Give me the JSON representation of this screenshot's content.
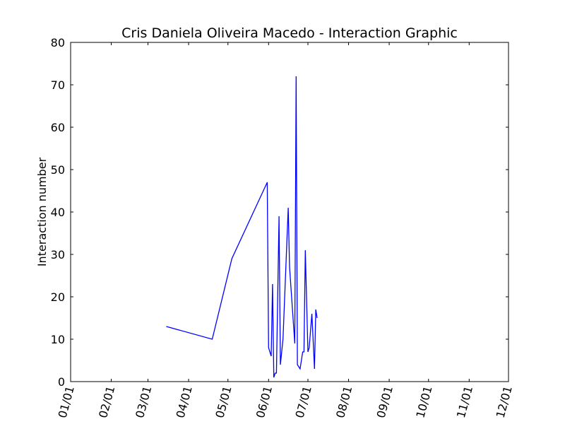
{
  "chart_data": {
    "type": "line",
    "title": "Cris Daniela Oliveira Macedo - Interaction Graphic",
    "xlabel": "",
    "ylabel": "Interaction number",
    "x_tick_labels": [
      "01/01",
      "02/01",
      "03/01",
      "04/01",
      "05/01",
      "06/01",
      "07/01",
      "08/01",
      "09/01",
      "10/01",
      "11/01",
      "12/01"
    ],
    "y_tick_labels": [
      "0",
      "10",
      "20",
      "30",
      "40",
      "50",
      "60",
      "70",
      "80"
    ],
    "ylim": [
      0,
      80
    ],
    "grid": false,
    "color": "#0000ff",
    "series": [
      {
        "x": [
          "03/15",
          "04/19",
          "05/04",
          "05/31",
          "06/01",
          "06/03",
          "06/04",
          "06/05",
          "06/06",
          "06/07",
          "06/09",
          "06/10",
          "06/12",
          "06/16",
          "06/17",
          "06/21",
          "06/22",
          "06/23",
          "06/25",
          "06/27",
          "06/28",
          "06/29",
          "07/01",
          "07/02",
          "07/04",
          "07/06",
          "07/07",
          "07/08"
        ],
        "values": [
          13,
          10,
          29,
          47,
          8,
          6,
          23,
          1,
          2,
          2,
          39,
          4,
          10,
          41,
          27,
          9,
          72,
          4,
          3,
          7,
          7,
          31,
          7,
          8,
          16,
          3,
          17,
          15
        ]
      }
    ]
  }
}
